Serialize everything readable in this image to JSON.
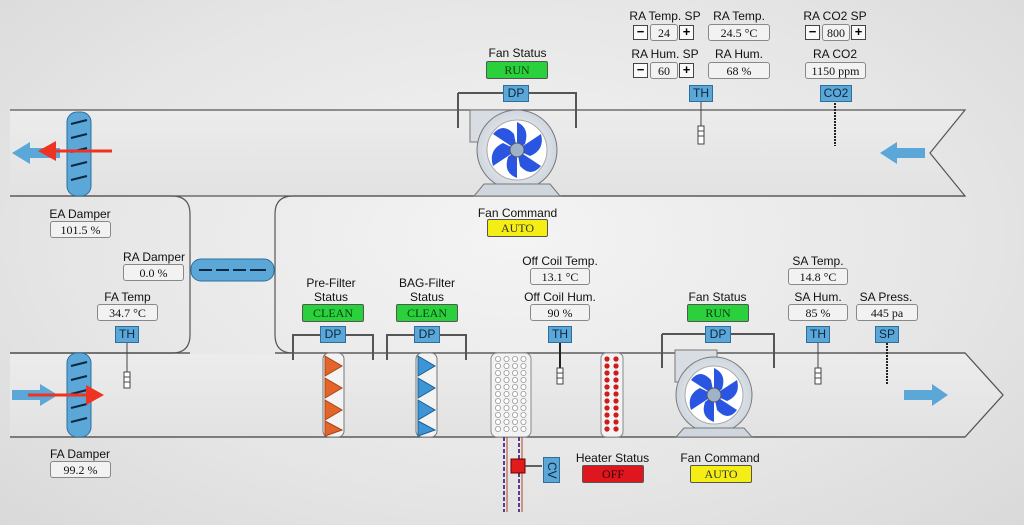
{
  "ra_panel": {
    "temp_sp_label": "RA Temp. SP",
    "temp_sp_value": "24",
    "temp_label": "RA Temp.",
    "temp_value": "24.5 °C",
    "hum_sp_label": "RA Hum. SP",
    "hum_sp_value": "60",
    "hum_label": "RA Hum.",
    "hum_value": "68 %",
    "co2_sp_label": "RA CO2 SP",
    "co2_sp_value": "800",
    "co2_label": "RA CO2",
    "co2_value": "1150 ppm",
    "th_tag": "TH",
    "co2_tag": "CO2",
    "minus": "−",
    "plus": "+"
  },
  "return_fan": {
    "status_label": "Fan Status",
    "status": "RUN",
    "dp_tag": "DP",
    "command_label": "Fan Command",
    "command": "AUTO"
  },
  "ea_damper": {
    "label": "EA Damper",
    "value": "101.5 %"
  },
  "ra_damper": {
    "label": "RA Damper",
    "value": "0.0 %"
  },
  "fa_temp": {
    "label": "FA Temp",
    "value": "34.7 °C",
    "tag": "TH"
  },
  "fa_damper": {
    "label": "FA Damper",
    "value": "99.2 %"
  },
  "pre_filter": {
    "label_1": "Pre-Filter",
    "label_2": "Status",
    "status": "CLEAN",
    "tag": "DP"
  },
  "bag_filter": {
    "label_1": "BAG-Filter",
    "label_2": "Status",
    "status": "CLEAN",
    "tag": "DP"
  },
  "off_coil": {
    "temp_label": "Off Coil Temp.",
    "temp_value": "13.1 °C",
    "hum_label": "Off Coil Hum.",
    "hum_value": "90 %",
    "tag": "TH"
  },
  "valve": {
    "tag": "CV"
  },
  "heater": {
    "label": "Heater Status",
    "status": "OFF"
  },
  "supply_fan": {
    "status_label": "Fan Status",
    "status": "RUN",
    "dp_tag": "DP",
    "command_label": "Fan Command",
    "command": "AUTO"
  },
  "sa": {
    "temp_label": "SA Temp.",
    "temp_value": "14.8 °C",
    "hum_label": "SA Hum.",
    "hum_value": "85 %",
    "th_tag": "TH",
    "press_label": "SA Press.",
    "press_value": "445 pa",
    "sp_tag": "SP"
  },
  "colors": {
    "status_on": "#2bd13c",
    "command": "#f4ee14",
    "heater_off": "#e0161e",
    "tag": "#5aa7d8",
    "airflow_arrow": "#5aa7d8",
    "damper_arrow": "#ee3322"
  }
}
